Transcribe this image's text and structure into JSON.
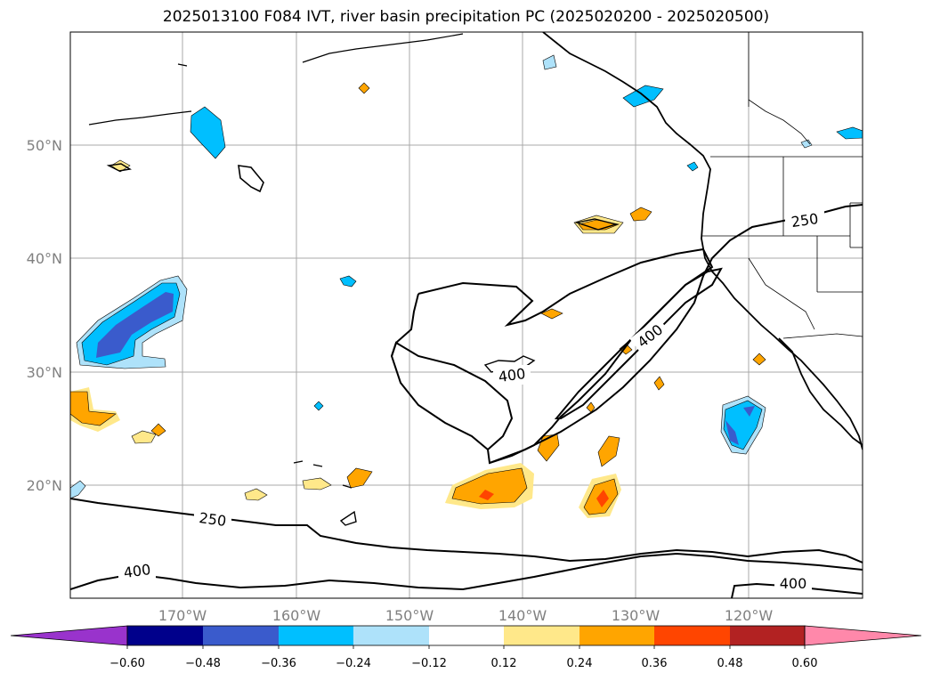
{
  "title": "2025013100 F084 IVT, river basin precipitation PC (2025020200 - 2025020500)",
  "map": {
    "lon_labels": [
      "170°W",
      "160°W",
      "150°W",
      "140°W",
      "130°W",
      "120°W"
    ],
    "lat_labels": [
      "50°N",
      "40°N",
      "30°N",
      "20°N"
    ],
    "contour_labels": [
      "250",
      "400",
      "400",
      "250",
      "400",
      "400"
    ]
  },
  "colorbar": {
    "tick_labels": [
      "−0.60",
      "−0.48",
      "−0.36",
      "−0.24",
      "−0.12",
      "0.12",
      "0.24",
      "0.36",
      "0.48",
      "0.60"
    ],
    "colors": [
      "#9933cc",
      "#00008b",
      "#3a5bcc",
      "#00bfff",
      "#aee2fa",
      "#ffffff",
      "#ffe88a",
      "#ffa500",
      "#ff4500",
      "#b22222",
      "#ff88aa"
    ]
  }
}
